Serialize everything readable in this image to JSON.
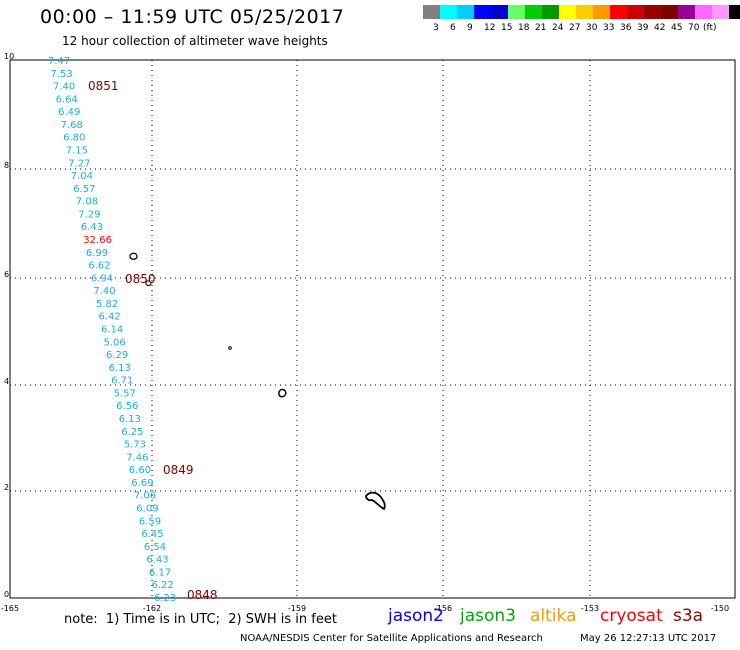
{
  "title": "00:00 – 11:59 UTC 05/25/2017",
  "subtitle": "12 hour collection of altimeter wave heights",
  "colorbar": {
    "colors": [
      "#808080",
      "#00ffff",
      "#00ccff",
      "#0000ff",
      "#0000cc",
      "#66ff66",
      "#00cc00",
      "#009900",
      "#ffff00",
      "#ffcc00",
      "#ff9900",
      "#ff0000",
      "#cc0000",
      "#990000",
      "#800000",
      "#990099",
      "#ff66ff",
      "#ff99ff",
      "#000000"
    ],
    "labels": [
      "3",
      "6",
      "9",
      "12",
      "15",
      "18",
      "21",
      "24",
      "27",
      "30",
      "33",
      "36",
      "39",
      "42",
      "45",
      "70"
    ],
    "unit": "(ft)"
  },
  "axes": {
    "x_ticks": [
      "-165",
      "-162",
      "-159",
      "-156",
      "-153",
      "-150"
    ],
    "y_ticks": [
      "0",
      "2",
      "4",
      "6",
      "8",
      "10"
    ]
  },
  "track": {
    "values": [
      "7.47",
      "7.53",
      "7.40",
      "6.64",
      "6.49",
      "7.68",
      "6.80",
      "7.15",
      "7.27",
      "7.04",
      "6.57",
      "7.08",
      "7.29",
      "6.43",
      "32.66",
      "6.99",
      "6.62",
      "6.94",
      "7.40",
      "5.82",
      "6.42",
      "6.14",
      "5.06",
      "6.29",
      "6.13",
      "6.71",
      "5.57",
      "6.56",
      "6.13",
      "6.25",
      "5.73",
      "7.46",
      "6.60",
      "6.69",
      "7.06",
      "6.09",
      "6.59",
      "6.45",
      "6.54",
      "6.43",
      "6.17",
      "6.22",
      "6.23"
    ],
    "highlight_index": 14,
    "normal_color": "#1ab0e0",
    "highlight_color": "#ff0000"
  },
  "time_labels": [
    "0851",
    "0850",
    "0849",
    "0848"
  ],
  "time_label_color": "#800000",
  "note": "note:  1) Time is in UTC;  2) SWH is in feet",
  "satellites": [
    {
      "name": "jason2",
      "color": "#0000ff"
    },
    {
      "name": "jason3",
      "color": "#00aa00"
    },
    {
      "name": "altika",
      "color": "#ff9900"
    },
    {
      "name": "cryosat",
      "color": "#ff0000"
    },
    {
      "name": "s3a",
      "color": "#990000"
    }
  ],
  "credit": "NOAA/NESDIS Center for Satellite Applications and Research",
  "timestamp": "May 26 12:27:13 UTC 2017"
}
